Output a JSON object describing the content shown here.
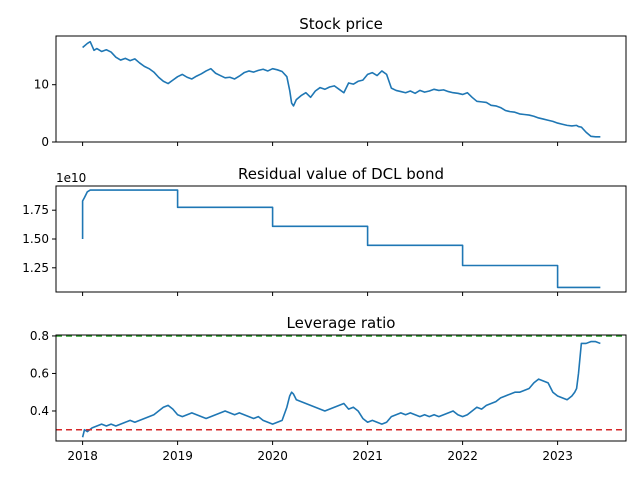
{
  "chart_data": [
    {
      "type": "line",
      "title": "Stock price",
      "xlabel": "",
      "ylabel": "",
      "xlim": [
        2017.72,
        2023.72
      ],
      "ylim": [
        0,
        18.5
      ],
      "yticks": [
        0,
        10
      ],
      "ytick_labels": [
        "0",
        "10"
      ],
      "xticks": [
        2018,
        2019,
        2020,
        2021,
        2022,
        2023
      ],
      "xtick_labels": [],
      "offset_text": "",
      "series": [
        {
          "color": "#1f77b4",
          "x": [
            2018.0,
            2018.05,
            2018.08,
            2018.12,
            2018.15,
            2018.2,
            2018.25,
            2018.3,
            2018.35,
            2018.4,
            2018.45,
            2018.5,
            2018.55,
            2018.6,
            2018.65,
            2018.7,
            2018.75,
            2018.8,
            2018.85,
            2018.9,
            2018.95,
            2019.0,
            2019.05,
            2019.1,
            2019.15,
            2019.2,
            2019.25,
            2019.3,
            2019.35,
            2019.4,
            2019.45,
            2019.5,
            2019.55,
            2019.6,
            2019.65,
            2019.7,
            2019.75,
            2019.8,
            2019.85,
            2019.9,
            2019.95,
            2020.0,
            2020.05,
            2020.1,
            2020.15,
            2020.18,
            2020.2,
            2020.22,
            2020.25,
            2020.3,
            2020.35,
            2020.4,
            2020.45,
            2020.5,
            2020.55,
            2020.6,
            2020.65,
            2020.7,
            2020.75,
            2020.8,
            2020.85,
            2020.9,
            2020.95,
            2021.0,
            2021.05,
            2021.1,
            2021.15,
            2021.2,
            2021.25,
            2021.3,
            2021.35,
            2021.4,
            2021.45,
            2021.5,
            2021.55,
            2021.6,
            2021.65,
            2021.7,
            2021.75,
            2021.8,
            2021.85,
            2021.9,
            2021.95,
            2022.0,
            2022.05,
            2022.1,
            2022.15,
            2022.2,
            2022.25,
            2022.3,
            2022.35,
            2022.4,
            2022.45,
            2022.5,
            2022.55,
            2022.6,
            2022.65,
            2022.7,
            2022.75,
            2022.8,
            2022.85,
            2022.9,
            2022.95,
            2023.0,
            2023.05,
            2023.1,
            2023.15,
            2023.2,
            2023.22,
            2023.25,
            2023.3,
            2023.35,
            2023.4,
            2023.45
          ],
          "y": [
            16.5,
            17.2,
            17.5,
            16.0,
            16.3,
            15.8,
            16.1,
            15.7,
            14.8,
            14.3,
            14.6,
            14.2,
            14.5,
            13.8,
            13.2,
            12.8,
            12.2,
            11.3,
            10.6,
            10.2,
            10.8,
            11.4,
            11.8,
            11.3,
            11.0,
            11.5,
            11.9,
            12.4,
            12.8,
            12.0,
            11.6,
            11.2,
            11.3,
            11.0,
            11.5,
            12.1,
            12.4,
            12.2,
            12.5,
            12.7,
            12.4,
            12.8,
            12.6,
            12.3,
            11.4,
            9.0,
            6.8,
            6.3,
            7.4,
            8.1,
            8.6,
            7.8,
            8.9,
            9.5,
            9.2,
            9.6,
            9.8,
            9.2,
            8.6,
            10.3,
            10.1,
            10.6,
            10.8,
            11.8,
            12.1,
            11.6,
            12.4,
            11.8,
            9.4,
            9.0,
            8.8,
            8.6,
            8.9,
            8.5,
            9.0,
            8.7,
            8.9,
            9.2,
            9.0,
            9.1,
            8.8,
            8.6,
            8.5,
            8.3,
            8.6,
            7.8,
            7.1,
            7.0,
            6.9,
            6.4,
            6.3,
            6.0,
            5.5,
            5.3,
            5.2,
            4.9,
            4.8,
            4.7,
            4.5,
            4.2,
            4.0,
            3.8,
            3.6,
            3.3,
            3.1,
            2.9,
            2.8,
            2.9,
            2.7,
            2.6,
            1.7,
            1.0,
            0.9,
            0.9
          ]
        }
      ]
    },
    {
      "type": "line",
      "title": "Residual value of DCL bond",
      "xlabel": "",
      "ylabel": "",
      "xlim": [
        2017.72,
        2023.72
      ],
      "ylim": [
        1.04,
        1.96
      ],
      "yticks": [
        1.25,
        1.5,
        1.75
      ],
      "ytick_labels": [
        "1.25",
        "1.50",
        "1.75"
      ],
      "xticks": [
        2018,
        2019,
        2020,
        2021,
        2022,
        2023
      ],
      "xtick_labels": [],
      "offset_text": "1e10",
      "series": [
        {
          "color": "#1f77b4",
          "x": [
            2018.0,
            2018.0,
            2018.02,
            2018.05,
            2018.08,
            2019.0,
            2019.0,
            2020.0,
            2020.0,
            2021.0,
            2021.0,
            2022.0,
            2022.0,
            2023.0,
            2023.0,
            2023.45
          ],
          "y": [
            1.5,
            1.83,
            1.86,
            1.91,
            1.925,
            1.925,
            1.775,
            1.775,
            1.61,
            1.61,
            1.445,
            1.445,
            1.27,
            1.27,
            1.08,
            1.08
          ]
        }
      ]
    },
    {
      "type": "line",
      "title": "Leverage ratio",
      "xlabel": "",
      "ylabel": "",
      "xlim": [
        2017.72,
        2023.72
      ],
      "ylim": [
        0.24,
        0.805
      ],
      "yticks": [
        0.4,
        0.6,
        0.8
      ],
      "ytick_labels": [
        "0.4",
        "0.6",
        "0.8"
      ],
      "xticks": [
        2018,
        2019,
        2020,
        2021,
        2022,
        2023
      ],
      "xtick_labels": [
        "2018",
        "2019",
        "2020",
        "2021",
        "2022",
        "2023"
      ],
      "offset_text": "",
      "hlines": [
        {
          "y": 0.8,
          "color": "#2ca02c",
          "style": "dashed"
        },
        {
          "y": 0.3,
          "color": "#d62728",
          "style": "dashed"
        }
      ],
      "series": [
        {
          "color": "#1f77b4",
          "x": [
            2018.0,
            2018.02,
            2018.05,
            2018.1,
            2018.15,
            2018.2,
            2018.25,
            2018.3,
            2018.35,
            2018.4,
            2018.45,
            2018.5,
            2018.55,
            2018.6,
            2018.65,
            2018.7,
            2018.75,
            2018.8,
            2018.85,
            2018.9,
            2018.95,
            2019.0,
            2019.05,
            2019.1,
            2019.15,
            2019.2,
            2019.25,
            2019.3,
            2019.35,
            2019.4,
            2019.45,
            2019.5,
            2019.55,
            2019.6,
            2019.65,
            2019.7,
            2019.75,
            2019.8,
            2019.85,
            2019.9,
            2019.95,
            2020.0,
            2020.05,
            2020.1,
            2020.15,
            2020.18,
            2020.2,
            2020.22,
            2020.25,
            2020.3,
            2020.35,
            2020.4,
            2020.45,
            2020.5,
            2020.55,
            2020.6,
            2020.65,
            2020.7,
            2020.75,
            2020.8,
            2020.85,
            2020.9,
            2020.95,
            2021.0,
            2021.05,
            2021.1,
            2021.15,
            2021.2,
            2021.25,
            2021.3,
            2021.35,
            2021.4,
            2021.45,
            2021.5,
            2021.55,
            2021.6,
            2021.65,
            2021.7,
            2021.75,
            2021.8,
            2021.85,
            2021.9,
            2021.95,
            2022.0,
            2022.05,
            2022.1,
            2022.15,
            2022.2,
            2022.25,
            2022.3,
            2022.35,
            2022.4,
            2022.45,
            2022.5,
            2022.55,
            2022.6,
            2022.65,
            2022.7,
            2022.75,
            2022.8,
            2022.85,
            2022.9,
            2022.95,
            2023.0,
            2023.05,
            2023.1,
            2023.15,
            2023.18,
            2023.2,
            2023.22,
            2023.25,
            2023.3,
            2023.35,
            2023.4,
            2023.45
          ],
          "y": [
            0.26,
            0.3,
            0.29,
            0.31,
            0.32,
            0.33,
            0.32,
            0.33,
            0.32,
            0.33,
            0.34,
            0.35,
            0.34,
            0.35,
            0.36,
            0.37,
            0.38,
            0.4,
            0.42,
            0.43,
            0.41,
            0.38,
            0.37,
            0.38,
            0.39,
            0.38,
            0.37,
            0.36,
            0.37,
            0.38,
            0.39,
            0.4,
            0.39,
            0.38,
            0.39,
            0.38,
            0.37,
            0.36,
            0.37,
            0.35,
            0.34,
            0.33,
            0.34,
            0.35,
            0.42,
            0.48,
            0.5,
            0.49,
            0.46,
            0.45,
            0.44,
            0.43,
            0.42,
            0.41,
            0.4,
            0.41,
            0.42,
            0.43,
            0.44,
            0.41,
            0.42,
            0.4,
            0.36,
            0.34,
            0.35,
            0.34,
            0.33,
            0.34,
            0.37,
            0.38,
            0.39,
            0.38,
            0.39,
            0.38,
            0.37,
            0.38,
            0.37,
            0.38,
            0.37,
            0.38,
            0.39,
            0.4,
            0.38,
            0.37,
            0.38,
            0.4,
            0.42,
            0.41,
            0.43,
            0.44,
            0.45,
            0.47,
            0.48,
            0.49,
            0.5,
            0.5,
            0.51,
            0.52,
            0.55,
            0.57,
            0.56,
            0.55,
            0.5,
            0.48,
            0.47,
            0.46,
            0.48,
            0.5,
            0.52,
            0.6,
            0.76,
            0.76,
            0.77,
            0.77,
            0.76
          ]
        }
      ]
    }
  ]
}
